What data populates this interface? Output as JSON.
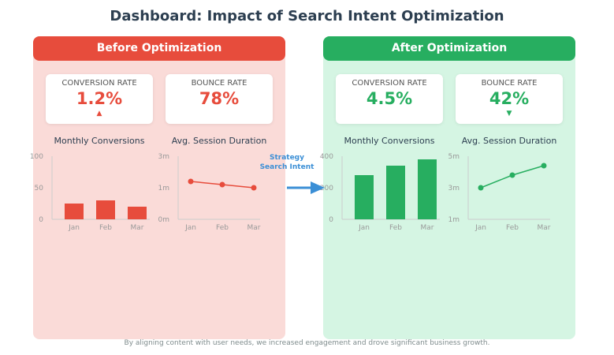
{
  "title": "Dashboard: Impact of Search Intent Optimization",
  "colors": {
    "before": "#e74c3c",
    "after": "#27ae60",
    "arrow": "#3b8fd6"
  },
  "arrow": {
    "line1": "Strategy",
    "line2": "Search Intent",
    "icon": "arrow-right-icon"
  },
  "footer": "By aligning content with user needs, we increased engagement and drove significant business growth.",
  "panels": {
    "before": {
      "header": "Before Optimization",
      "kpis": [
        {
          "label": "CONVERSION RATE",
          "value": "1.2%",
          "indicator": "▲"
        },
        {
          "label": "BOUNCE RATE",
          "value": "78%",
          "indicator": ""
        }
      ]
    },
    "after": {
      "header": "After Optimization",
      "kpis": [
        {
          "label": "CONVERSION RATE",
          "value": "4.5%",
          "indicator": ""
        },
        {
          "label": "BOUNCE RATE",
          "value": "42%",
          "indicator": "▼"
        }
      ]
    }
  },
  "chart_data": [
    {
      "panel": "before",
      "type": "bar",
      "title": "Monthly Conversions",
      "categories": [
        "Jan",
        "Feb",
        "Mar"
      ],
      "values": [
        25,
        30,
        20
      ],
      "ylim": [
        0,
        100
      ],
      "yticks": [
        "0",
        "50",
        "100"
      ]
    },
    {
      "panel": "before",
      "type": "line",
      "title": "Avg. Session Duration",
      "categories": [
        "Jan",
        "Feb",
        "Mar"
      ],
      "values": [
        1.8,
        1.65,
        1.5
      ],
      "ylim": [
        0,
        3
      ],
      "yticks": [
        "0m",
        "1m",
        "3m"
      ]
    },
    {
      "panel": "after",
      "type": "bar",
      "title": "Monthly Conversions",
      "categories": [
        "Jan",
        "Feb",
        "Mar"
      ],
      "values": [
        280,
        340,
        380
      ],
      "ylim": [
        0,
        400
      ],
      "yticks": [
        "0",
        "200",
        "400"
      ]
    },
    {
      "panel": "after",
      "type": "line",
      "title": "Avg. Session Duration",
      "categories": [
        "Jan",
        "Feb",
        "Mar"
      ],
      "values": [
        3.0,
        3.8,
        4.4
      ],
      "ylim": [
        1,
        5
      ],
      "yticks": [
        "1m",
        "3m",
        "5m"
      ]
    }
  ]
}
